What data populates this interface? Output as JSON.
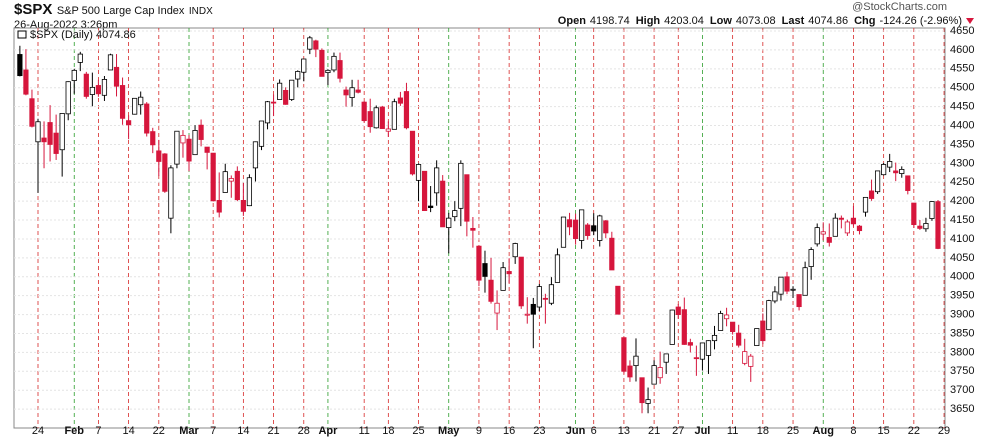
{
  "header": {
    "symbol": "$SPX",
    "name": "S&P 500 Large Cap Index",
    "exchange": "INDX",
    "timestamp": "26-Aug-2022 3:26pm",
    "watermark": "@StockCharts.com",
    "quote": [
      {
        "label": "Open",
        "value": "4198.74"
      },
      {
        "label": "High",
        "value": "4203.04"
      },
      {
        "label": "Low",
        "value": "4073.08"
      },
      {
        "label": "Last",
        "value": "4074.86"
      },
      {
        "label": "Chg",
        "value": "-124.26 (-2.96%)"
      }
    ]
  },
  "chart_data": {
    "type": "candlestick",
    "legend": "$SPX (Daily) 4074.86",
    "grid": true,
    "up_color": "#000000",
    "down_color": "#d6163c",
    "week_line_color": "#d62828",
    "month_line_color": "#2a9d2a",
    "ylim": [
      3600,
      4658
    ],
    "yticks": [
      3650,
      3700,
      3750,
      3800,
      3850,
      3900,
      3950,
      4000,
      4050,
      4100,
      4150,
      4200,
      4250,
      4300,
      4350,
      4400,
      4450,
      4500,
      4550,
      4600,
      4650
    ],
    "categories": [
      null,
      null,
      null,
      "24",
      null,
      null,
      null,
      null,
      null,
      "Feb",
      null,
      null,
      null,
      "7",
      null,
      null,
      null,
      null,
      "14",
      null,
      null,
      null,
      null,
      "22",
      null,
      null,
      null,
      null,
      "Mar",
      null,
      null,
      null,
      "7",
      null,
      null,
      null,
      null,
      "14",
      null,
      null,
      null,
      null,
      "21",
      null,
      null,
      null,
      null,
      "28",
      null,
      null,
      null,
      "Apr",
      null,
      null,
      null,
      null,
      null,
      "11",
      null,
      null,
      null,
      "18",
      null,
      null,
      null,
      null,
      "25",
      null,
      null,
      null,
      null,
      "May",
      null,
      null,
      null,
      null,
      "9",
      null,
      null,
      null,
      null,
      "16",
      null,
      null,
      null,
      null,
      "23",
      null,
      null,
      null,
      null,
      null,
      "Jun",
      null,
      null,
      "6",
      null,
      null,
      null,
      null,
      "13",
      null,
      null,
      null,
      null,
      "21",
      null,
      null,
      null,
      "27",
      null,
      null,
      null,
      "Jul",
      null,
      null,
      null,
      null,
      "11",
      null,
      null,
      null,
      null,
      "18",
      null,
      null,
      null,
      null,
      "25",
      null,
      null,
      null,
      null,
      "Aug",
      null,
      null,
      null,
      null,
      "8",
      null,
      null,
      null,
      null,
      "15",
      null,
      null,
      null,
      null,
      "22",
      null,
      null,
      null,
      null,
      "29"
    ],
    "open": [
      4588,
      4547,
      4471,
      4357,
      4367,
      4408,
      4380,
      4336,
      4431,
      4519,
      4567,
      4536,
      4482,
      4506,
      4480,
      4547,
      4554,
      4506,
      4413,
      4430,
      4455,
      4457,
      4384,
      4333,
      4325,
      4155,
      4298,
      4354,
      4364,
      4323,
      4401,
      4343,
      4327,
      4202,
      4223,
      4253,
      4279,
      4202,
      4188,
      4288,
      4345,
      4407,
      4462,
      4469,
      4493,
      4469,
      4523,
      4541,
      4602,
      4624,
      4599,
      4540,
      4547,
      4572,
      4494,
      4474,
      4494,
      4462,
      4437,
      4394,
      4449,
      4385,
      4390,
      4473,
      4490,
      4385,
      4255,
      4279,
      4187,
      4222,
      4253,
      4130,
      4159,
      4181,
      4270,
      4128,
      4081,
      4035,
      3991,
      3904,
      3964,
      4014,
      4053,
      4052,
      3900,
      3927,
      3920,
      3943,
      3930,
      3985,
      4078,
      4151,
      4150,
      4096,
      4137,
      4135,
      4096,
      4148,
      4102,
      3975,
      3839,
      3764,
      3765,
      3733,
      3665,
      3716,
      3733,
      3774,
      3821,
      3920,
      3913,
      3826,
      3786,
      3782,
      3792,
      3831,
      3858,
      3889,
      3880,
      3851,
      3771,
      3763,
      3818,
      3883,
      3860,
      3936,
      3954,
      4000,
      3965,
      3953,
      3951,
      4027,
      4087,
      4113,
      4104,
      4107,
      4155,
      4116,
      4155,
      4134,
      4171,
      4227,
      4225,
      4270,
      4290,
      4280,
      4273,
      4267,
      4195,
      4134,
      4127,
      4154,
      4198.74,
      null
    ],
    "high": [
      4611,
      4602,
      4495,
      4418,
      4411,
      4454,
      4429,
      4432,
      4517,
      4550,
      4595,
      4542,
      4540,
      4521,
      4531,
      4590,
      4589,
      4527,
      4427,
      4472,
      4490,
      4462,
      4394,
      4362,
      4327,
      4295,
      4385,
      4388,
      4375,
      4401,
      4416,
      4343,
      4327,
      4276,
      4299,
      4268,
      4292,
      4248,
      4271,
      4358,
      4412,
      4465,
      4482,
      4522,
      4501,
      4520,
      4546,
      4576,
      4637,
      4627,
      4604,
      4549,
      4593,
      4593,
      4503,
      4521,
      4521,
      4464,
      4471,
      4453,
      4452,
      4411,
      4471,
      4489,
      4513,
      4385,
      4300,
      4279,
      4240,
      4308,
      4269,
      4169,
      4200,
      4308,
      4270,
      4158,
      4082,
      4069,
      4050,
      3964,
      4039,
      4049,
      4090,
      4052,
      3946,
      3944,
      3981,
      3955,
      3999,
      4075,
      4158,
      4169,
      4167,
      4177,
      4142,
      4168,
      4164,
      4150,
      4119,
      3975,
      3839,
      3779,
      3837,
      3733,
      3707,
      3779,
      3802,
      3796,
      3913,
      3928,
      3945,
      3836,
      3818,
      3826,
      3832,
      3870,
      3910,
      3918,
      3880,
      3873,
      3836,
      3796,
      3863,
      3903,
      3939,
      3975,
      3999,
      4013,
      3975,
      3953,
      4040,
      4078,
      4141,
      4144,
      4141,
      4168,
      4162,
      4151,
      4187,
      4137,
      4211,
      4257,
      4280,
      4301,
      4325,
      4302,
      4292,
      4267,
      4195,
      4150,
      4156,
      4200,
      4203.04,
      null
    ],
    "low": [
      4530,
      4480,
      4395,
      4222,
      4287,
      4305,
      4309,
      4265,
      4414,
      4484,
      4544,
      4471,
      4451,
      4476,
      4465,
      4547,
      4477,
      4402,
      4364,
      4429,
      4429,
      4371,
      4327,
      4267,
      4222,
      4115,
      4287,
      4315,
      4279,
      4322,
      4345,
      4284,
      4199,
      4157,
      4223,
      4209,
      4200,
      4161,
      4187,
      4252,
      4335,
      4390,
      4425,
      4469,
      4455,
      4465,
      4501,
      4517,
      4589,
      4581,
      4530,
      4507,
      4541,
      4514,
      4450,
      4450,
      4485,
      4408,
      4381,
      4392,
      4392,
      4370,
      4390,
      4452,
      4390,
      4268,
      4200,
      4175,
      4171,
      4188,
      4132,
      4062,
      4147,
      4134,
      4107,
      4077,
      3975,
      3958,
      3929,
      3859,
      3964,
      3983,
      4034,
      3915,
      3876,
      3811,
      3909,
      3876,
      3925,
      3985,
      4078,
      4110,
      4085,
      4074,
      4098,
      4110,
      4080,
      4102,
      4018,
      3901,
      3744,
      3722,
      3723,
      3639,
      3639,
      3716,
      3717,
      3743,
      3821,
      3889,
      3820,
      3800,
      3738,
      3752,
      3743,
      3808,
      3858,
      3869,
      3847,
      3813,
      3766,
      3722,
      3818,
      3822,
      3860,
      3930,
      3937,
      3954,
      3944,
      3911,
      3951,
      3992,
      4080,
      4096,
      4080,
      4107,
      4128,
      4108,
      4133,
      4112,
      4159,
      4201,
      4219,
      4268,
      4277,
      4253,
      4262,
      4218,
      4129,
      4124,
      4119,
      4148,
      4073.08,
      null
    ],
    "close": [
      4532,
      4483,
      4398,
      4410,
      4357,
      4350,
      4326,
      4432,
      4516,
      4546,
      4589,
      4477,
      4501,
      4484,
      4522,
      4587,
      4504,
      4419,
      4402,
      4472,
      4475,
      4380,
      4349,
      4305,
      4226,
      4288,
      4385,
      4374,
      4306,
      4387,
      4363,
      4329,
      4201,
      4171,
      4278,
      4260,
      4204,
      4173,
      4262,
      4357,
      4412,
      4463,
      4461,
      4512,
      4456,
      4520,
      4543,
      4576,
      4632,
      4602,
      4530,
      4546,
      4583,
      4525,
      4481,
      4500,
      4488,
      4413,
      4397,
      4447,
      4392,
      4391,
      4463,
      4459,
      4394,
      4272,
      4297,
      4175,
      4183,
      4288,
      4132,
      4155,
      4175,
      4300,
      4147,
      4123,
      3991,
      4001,
      3935,
      3930,
      4024,
      4008,
      4088,
      3923,
      3901,
      3901,
      3974,
      3941,
      3979,
      4058,
      4158,
      4132,
      4101,
      4177,
      4109,
      4121,
      4161,
      4116,
      4018,
      3901,
      3750,
      3735,
      3790,
      3667,
      3675,
      3765,
      3760,
      3796,
      3912,
      3900,
      3821,
      3819,
      3785,
      3825,
      3831,
      3845,
      3903,
      3899,
      3855,
      3819,
      3802,
      3790,
      3863,
      3831,
      3937,
      3960,
      3999,
      3962,
      3967,
      3921,
      4024,
      4072,
      4130,
      4119,
      4091,
      4155,
      4152,
      4145,
      4140,
      4122,
      4210,
      4207,
      4280,
      4297,
      4305,
      4275,
      4284,
      4228,
      4138,
      4128,
      4141,
      4199,
      4074.86,
      null
    ]
  }
}
